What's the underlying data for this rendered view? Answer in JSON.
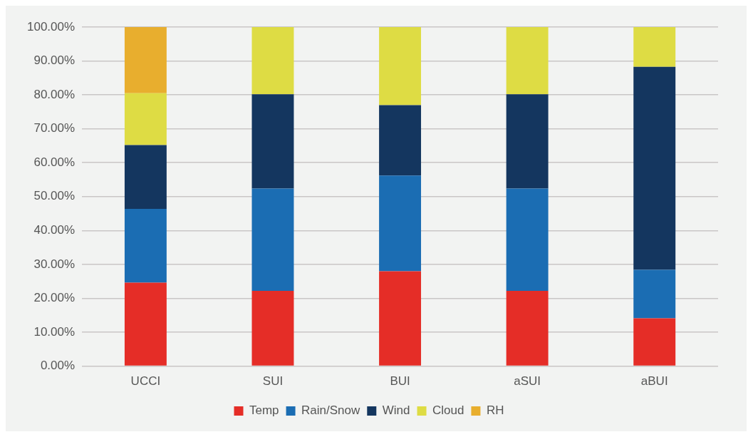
{
  "chart_data": {
    "type": "bar",
    "stacked": true,
    "categories": [
      "UCCI",
      "SUI",
      "BUI",
      "aSUI",
      "aBUI"
    ],
    "series": [
      {
        "name": "Temp",
        "color": "#e52d27",
        "values": [
          24.6,
          22.2,
          28.0,
          22.2,
          14.1
        ]
      },
      {
        "name": "Rain/Snow",
        "color": "#1b6db3",
        "values": [
          21.8,
          30.2,
          28.2,
          30.2,
          14.3
        ]
      },
      {
        "name": "Wind",
        "color": "#14365f",
        "values": [
          18.8,
          27.8,
          20.8,
          27.8,
          59.9
        ]
      },
      {
        "name": "Cloud",
        "color": "#dedc44",
        "values": [
          15.3,
          19.8,
          23.0,
          19.8,
          11.7
        ]
      },
      {
        "name": "RH",
        "color": "#e8ae2e",
        "values": [
          19.5,
          null,
          null,
          null,
          null
        ]
      }
    ],
    "ylim": [
      0,
      100
    ],
    "yticks": [
      {
        "value": 0,
        "label": "0.00%"
      },
      {
        "value": 10,
        "label": "10.00%"
      },
      {
        "value": 20,
        "label": "20.00%"
      },
      {
        "value": 30,
        "label": "30.00%"
      },
      {
        "value": 40,
        "label": "40.00%"
      },
      {
        "value": 50,
        "label": "50.00%"
      },
      {
        "value": 60,
        "label": "60.00%"
      },
      {
        "value": 70,
        "label": "70.00%"
      },
      {
        "value": 80,
        "label": "80.00%"
      },
      {
        "value": 90,
        "label": "90.00%"
      },
      {
        "value": 100,
        "label": "100.00%"
      }
    ],
    "grid": "y",
    "legend": "bottom"
  }
}
